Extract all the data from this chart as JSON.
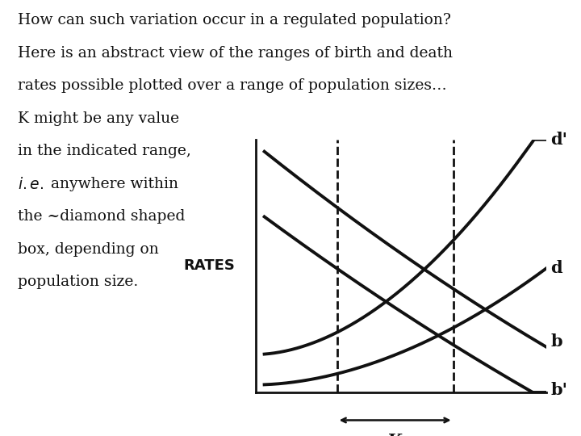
{
  "background_color": "#ffffff",
  "text_lines": [
    "How can such variation occur in a regulated population?",
    "Here is an abstract view of the ranges of birth and death",
    "rates possible plotted over a range of population sizes…",
    "K might be any value",
    "in the indicated range,",
    "ie_line",
    "the ~diamond shaped",
    "box, depending on",
    "population size."
  ],
  "text_fontsize": 13.5,
  "text_color": "#111111",
  "rates_label": "RATES",
  "rates_fontsize": 13,
  "curve_color": "#111111",
  "curve_lw": 2.8,
  "dashed_color": "#111111",
  "dashed_lw": 2.0,
  "label_fontsize": 15,
  "xlim": [
    0,
    10
  ],
  "ylim": [
    0,
    10
  ],
  "dashed_x1": 2.8,
  "dashed_x2": 6.8
}
